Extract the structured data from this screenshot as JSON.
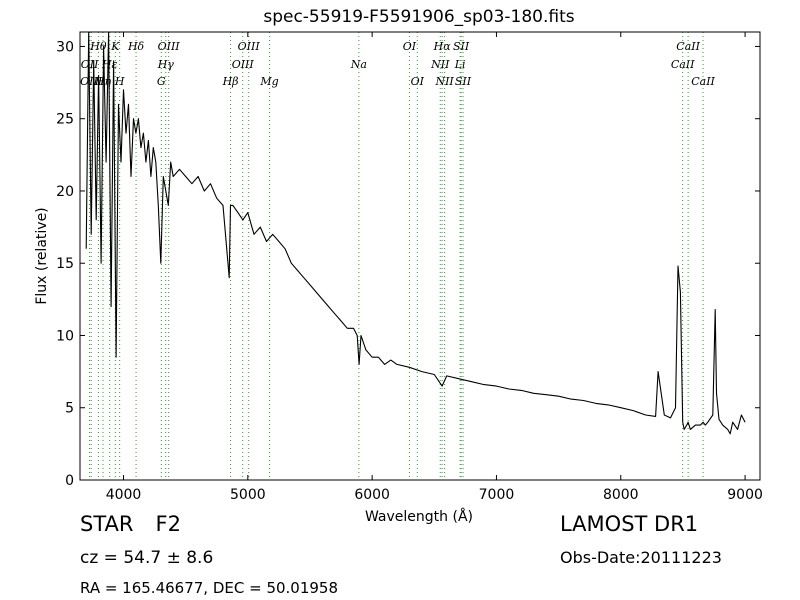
{
  "chart_data": {
    "type": "line",
    "title": "spec-55919-F5591906_sp03-180.fits",
    "xlabel": "Wavelength (Å)",
    "ylabel": "Flux (relative)",
    "xlim": [
      3650,
      9120
    ],
    "ylim": [
      0,
      31
    ],
    "xticks": [
      4000,
      5000,
      6000,
      7000,
      8000,
      9000
    ],
    "yticks": [
      0,
      5,
      10,
      15,
      20,
      25,
      30
    ],
    "grid": false,
    "series": [
      {
        "x": [
          3700,
          3720,
          3740,
          3760,
          3780,
          3800,
          3820,
          3840,
          3860,
          3880,
          3900,
          3920,
          3940,
          3960,
          3980,
          4000,
          4020,
          4040,
          4060,
          4080,
          4100,
          4120,
          4140,
          4160,
          4180,
          4200,
          4220,
          4240,
          4260,
          4280,
          4300,
          4320,
          4340,
          4360,
          4380,
          4400,
          4450,
          4500,
          4550,
          4600,
          4650,
          4700,
          4750,
          4800,
          4850,
          4861,
          4880,
          4920,
          4960,
          5000,
          5050,
          5100,
          5150,
          5200,
          5250,
          5300,
          5350,
          5400,
          5450,
          5500,
          5550,
          5600,
          5650,
          5700,
          5750,
          5800,
          5850,
          5880,
          5895,
          5910,
          5950,
          6000,
          6050,
          6100,
          6150,
          6200,
          6300,
          6400,
          6500,
          6563,
          6600,
          6700,
          6800,
          6900,
          7000,
          7100,
          7200,
          7300,
          7400,
          7500,
          7600,
          7700,
          7800,
          7900,
          8000,
          8100,
          8200,
          8280,
          8300,
          8350,
          8400,
          8440,
          8460,
          8480,
          8498,
          8510,
          8530,
          8542,
          8560,
          8600,
          8640,
          8662,
          8680,
          8700,
          8740,
          8760,
          8770,
          8790,
          8820,
          8860,
          8880,
          8900,
          8940,
          8970,
          9000
        ],
        "y": [
          16,
          31,
          17,
          29,
          18,
          28,
          15,
          30,
          22,
          31,
          12,
          29,
          8.5,
          26,
          22,
          27,
          24,
          26,
          21,
          25,
          24,
          25,
          23,
          24,
          22,
          23.5,
          21,
          23,
          22,
          19,
          15,
          21,
          20,
          19,
          22,
          21,
          21.5,
          21,
          20.5,
          21,
          20,
          20.5,
          19.5,
          19,
          14,
          19,
          19,
          18.5,
          18,
          18.5,
          17,
          17.5,
          16.5,
          17,
          16.5,
          16,
          15,
          14.5,
          14,
          13.5,
          13,
          12.5,
          12,
          11.5,
          11,
          10.5,
          10.5,
          10,
          8,
          10,
          9,
          8.5,
          8.5,
          8,
          8.3,
          8,
          7.8,
          7.5,
          7.3,
          6.5,
          7.2,
          7,
          6.8,
          6.6,
          6.5,
          6.3,
          6.2,
          6,
          5.9,
          5.8,
          5.6,
          5.5,
          5.3,
          5.2,
          5,
          4.8,
          4.5,
          4.4,
          7.5,
          4.5,
          4.3,
          5,
          14.8,
          13,
          4,
          3.5,
          3.8,
          4,
          3.5,
          3.8,
          3.8,
          4,
          3.8,
          4,
          4.5,
          11.8,
          6,
          4.2,
          3.8,
          3.5,
          3.2,
          4,
          3.5,
          4.5,
          4
        ]
      }
    ]
  },
  "line_markers": [
    {
      "label": "OII",
      "wavelength": 3727,
      "row": 2
    },
    {
      "label": "OIII",
      "wavelength": 3740,
      "row": 3
    },
    {
      "label": "Hθ",
      "wavelength": 3798,
      "row": 1
    },
    {
      "label": "Hη",
      "wavelength": 3835,
      "row": 3
    },
    {
      "label": "K",
      "wavelength": 3934,
      "row": 1
    },
    {
      "label": "Hε",
      "wavelength": 3889,
      "row": 2
    },
    {
      "label": "H",
      "wavelength": 3969,
      "row": 3
    },
    {
      "label": "Hδ",
      "wavelength": 4101,
      "row": 1
    },
    {
      "label": "G",
      "wavelength": 4304,
      "row": 3
    },
    {
      "label": "Hγ",
      "wavelength": 4340,
      "row": 2
    },
    {
      "label": "OIII",
      "wavelength": 4363,
      "row": 1
    },
    {
      "label": "Hβ",
      "wavelength": 4861,
      "row": 3
    },
    {
      "label": "OIII",
      "wavelength": 4959,
      "row": 2
    },
    {
      "label": "OIII",
      "wavelength": 5007,
      "row": 1
    },
    {
      "label": "Mg",
      "wavelength": 5175,
      "row": 3
    },
    {
      "label": "Na",
      "wavelength": 5893,
      "row": 2
    },
    {
      "label": "OI",
      "wavelength": 6300,
      "row": 1
    },
    {
      "label": "OI",
      "wavelength": 6363,
      "row": 3
    },
    {
      "label": "NII",
      "wavelength": 6548,
      "row": 2
    },
    {
      "label": "Hα",
      "wavelength": 6563,
      "row": 1
    },
    {
      "label": "NII",
      "wavelength": 6583,
      "row": 3
    },
    {
      "label": "Li",
      "wavelength": 6708,
      "row": 2
    },
    {
      "label": "SII",
      "wavelength": 6716,
      "row": 1
    },
    {
      "label": "SII",
      "wavelength": 6731,
      "row": 3
    },
    {
      "label": "CaII",
      "wavelength": 8498,
      "row": 2
    },
    {
      "label": "CaII",
      "wavelength": 8542,
      "row": 1
    },
    {
      "label": "CaII",
      "wavelength": 8662,
      "row": 3
    }
  ],
  "colors": {
    "spectrum": "#000000",
    "markers": "#2ca02c"
  },
  "info": {
    "object_type": "STAR",
    "subclass": "F2",
    "survey": "LAMOST DR1",
    "cz_text": "cz = 54.7 ± 8.6",
    "obs_date": "Obs-Date:20111223",
    "radec": "RA = 165.46677, DEC = 50.01958"
  }
}
